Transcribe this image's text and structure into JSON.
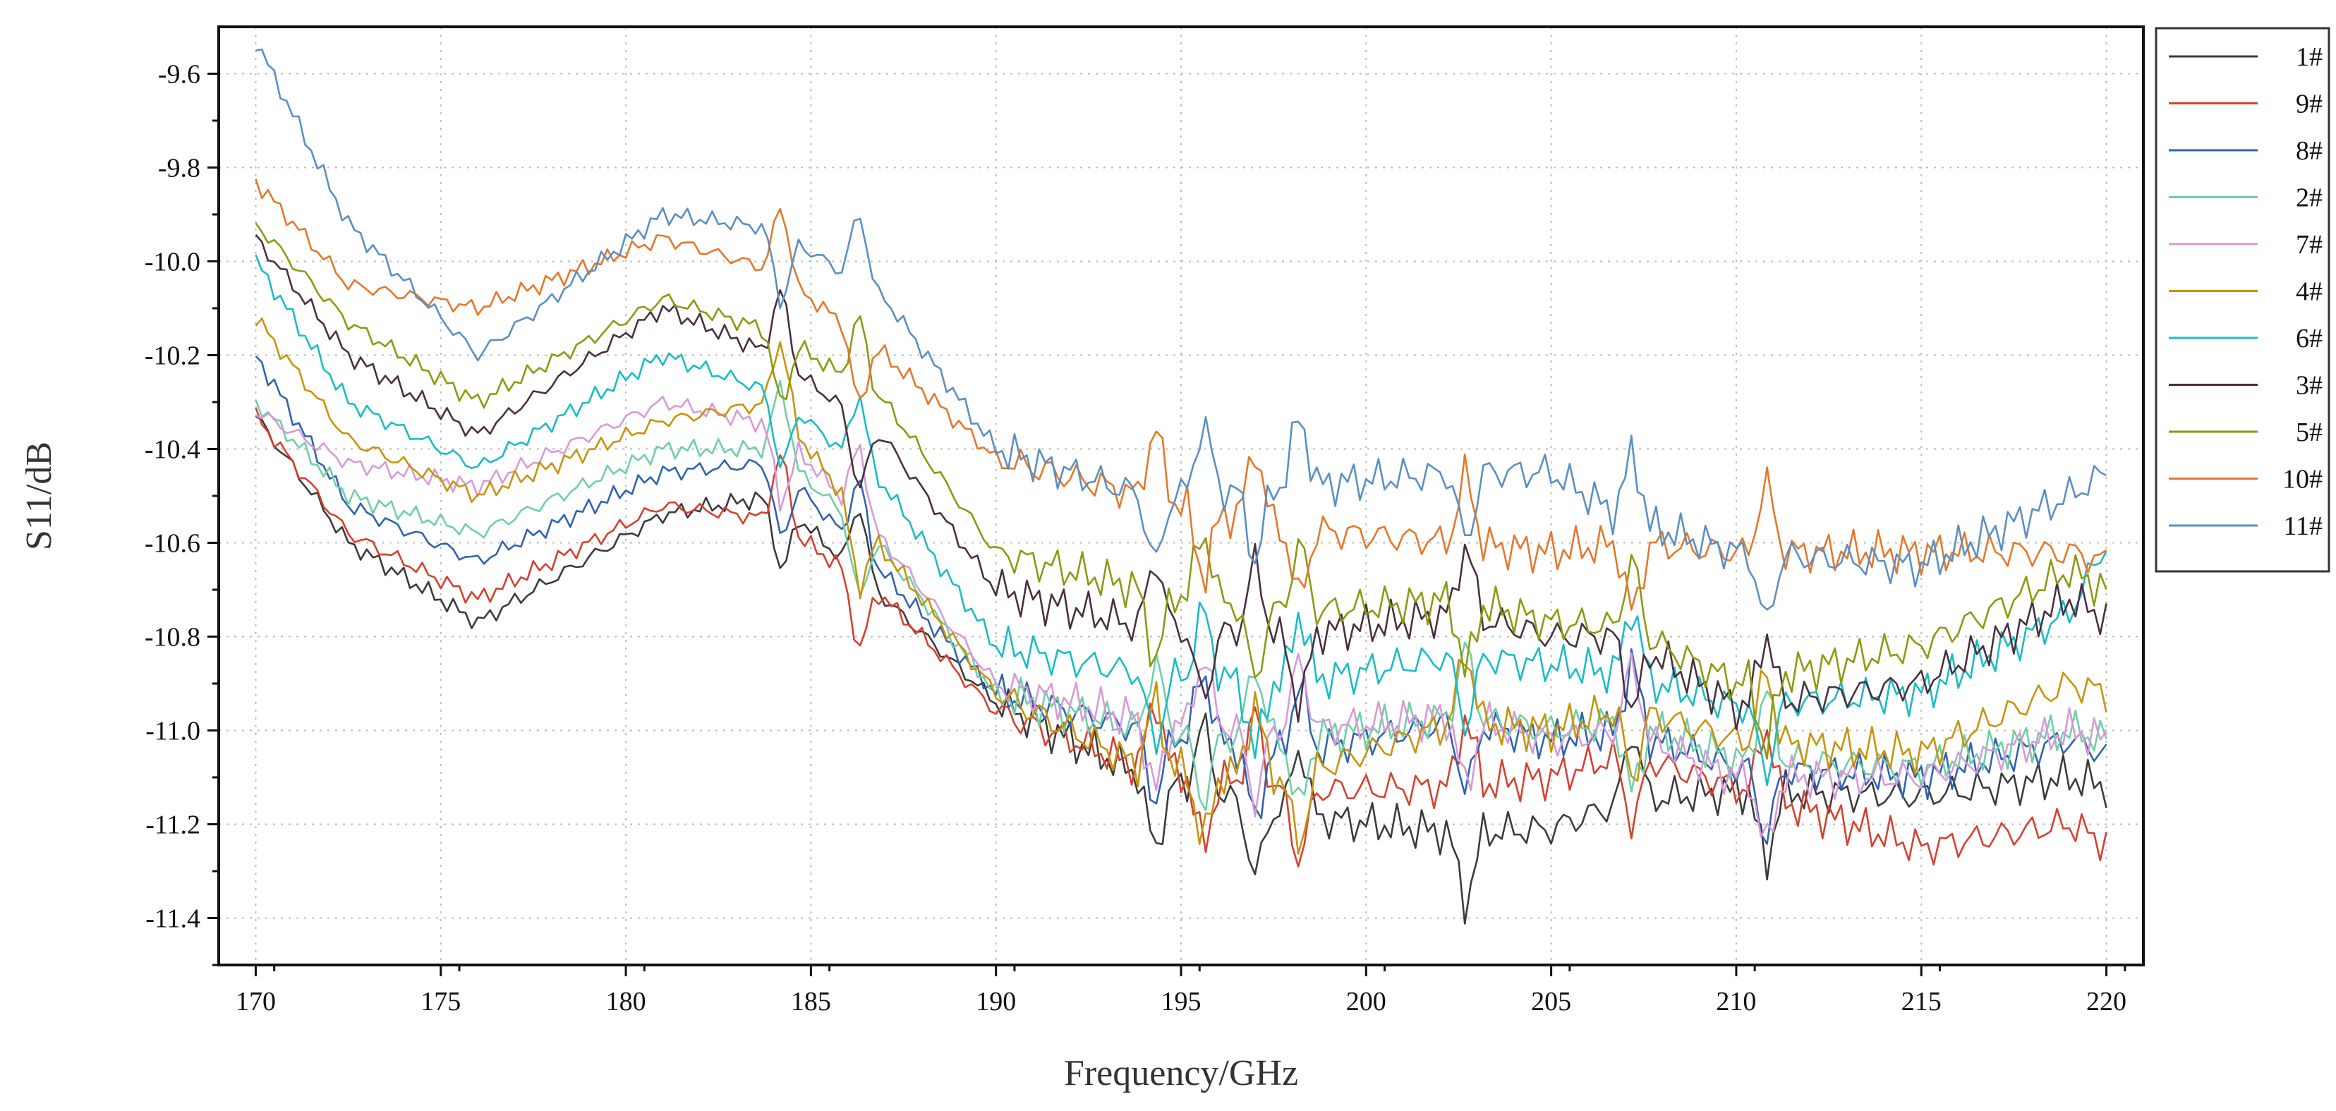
{
  "chart_data": {
    "type": "line",
    "title": "",
    "xlabel": "Frequency/GHz",
    "ylabel": "S11/dB",
    "xlim": [
      169,
      221
    ],
    "ylim": [
      -11.5,
      -9.5
    ],
    "xticks": [
      170,
      175,
      180,
      185,
      190,
      195,
      200,
      205,
      210,
      215,
      220
    ],
    "xtick_labels": [
      "170",
      "175",
      "180",
      "185",
      "190",
      "195",
      "200",
      "205",
      "210",
      "215",
      "220"
    ],
    "yticks": [
      -9.6,
      -9.8,
      -10.0,
      -10.2,
      -10.4,
      -10.6,
      -10.8,
      -11.0,
      -11.2,
      -11.4
    ],
    "ytick_labels": [
      "-9.6",
      "-9.8",
      "-10.0",
      "-10.2",
      "-10.4",
      "-10.6",
      "-10.8",
      "-11.0",
      "-11.2",
      "-11.4"
    ],
    "grid": true,
    "legend_position": "right",
    "x": [
      170,
      172.5,
      176,
      181,
      184,
      187,
      190,
      194,
      198,
      202.5,
      205,
      207,
      210,
      215,
      219,
      220
    ],
    "series": [
      {
        "name": "1#",
        "color": "#3b3b3b",
        "values": [
          -10.33,
          -10.6,
          -10.77,
          -10.54,
          -10.5,
          -10.72,
          -10.94,
          -11.1,
          -11.18,
          -11.22,
          -11.21,
          -11.15,
          -11.13,
          -11.14,
          -11.1,
          -11.12
        ]
      },
      {
        "name": "9#",
        "color": "#d6402f",
        "values": [
          -10.33,
          -10.58,
          -10.72,
          -10.52,
          -10.55,
          -10.72,
          -10.96,
          -11.08,
          -11.13,
          -11.12,
          -11.1,
          -11.05,
          -11.12,
          -11.25,
          -11.2,
          -11.24
        ]
      },
      {
        "name": "8#",
        "color": "#2f63b0",
        "values": [
          -10.2,
          -10.52,
          -10.64,
          -10.45,
          -10.43,
          -10.67,
          -10.92,
          -11.0,
          -11.05,
          -10.98,
          -11.02,
          -11.0,
          -11.08,
          -11.1,
          -11.02,
          -11.05
        ]
      },
      {
        "name": "2#",
        "color": "#6fcfa6",
        "values": [
          -10.3,
          -10.5,
          -10.58,
          -10.4,
          -10.4,
          -10.62,
          -10.92,
          -11.0,
          -11.02,
          -10.97,
          -11.0,
          -10.98,
          -11.06,
          -11.08,
          -11.0,
          -11.02
        ]
      },
      {
        "name": "7#",
        "color": "#d79ad8",
        "values": [
          -10.32,
          -10.43,
          -10.48,
          -10.3,
          -10.35,
          -10.6,
          -10.9,
          -10.98,
          -11.0,
          -10.97,
          -11.02,
          -11.0,
          -11.1,
          -11.1,
          -11.0,
          -11.02
        ]
      },
      {
        "name": "4#",
        "color": "#c9920c",
        "values": [
          -10.12,
          -10.38,
          -10.5,
          -10.34,
          -10.3,
          -10.62,
          -10.92,
          -11.08,
          -11.1,
          -10.98,
          -11.0,
          -10.95,
          -11.02,
          -11.05,
          -10.9,
          -10.92
        ]
      },
      {
        "name": "6#",
        "color": "#19bcc4",
        "values": [
          -10.0,
          -10.3,
          -10.44,
          -10.2,
          -10.28,
          -10.48,
          -10.82,
          -10.88,
          -10.9,
          -10.84,
          -10.86,
          -10.88,
          -10.95,
          -10.92,
          -10.75,
          -10.6
        ]
      },
      {
        "name": "3#",
        "color": "#4a2f40",
        "values": [
          -9.95,
          -10.2,
          -10.37,
          -10.1,
          -10.2,
          -10.38,
          -10.7,
          -10.78,
          -10.8,
          -10.75,
          -10.8,
          -10.8,
          -10.95,
          -10.9,
          -10.72,
          -10.76
        ]
      },
      {
        "name": "5#",
        "color": "#8a9a0f",
        "values": [
          -9.92,
          -10.13,
          -10.3,
          -10.08,
          -10.15,
          -10.3,
          -10.62,
          -10.7,
          -10.75,
          -10.72,
          -10.77,
          -10.78,
          -10.9,
          -10.82,
          -10.66,
          -10.7
        ]
      },
      {
        "name": "10#",
        "color": "#e5772b",
        "values": [
          -9.83,
          -10.05,
          -10.1,
          -9.95,
          -10.02,
          -10.2,
          -10.42,
          -10.5,
          -10.57,
          -10.6,
          -10.62,
          -10.6,
          -10.62,
          -10.62,
          -10.62,
          -10.64
        ]
      },
      {
        "name": "11#",
        "color": "#5a8fc4",
        "values": [
          -9.53,
          -9.92,
          -10.2,
          -9.9,
          -9.93,
          -10.08,
          -10.4,
          -10.5,
          -10.48,
          -10.45,
          -10.45,
          -10.55,
          -10.62,
          -10.65,
          -10.5,
          -10.45
        ]
      }
    ]
  }
}
